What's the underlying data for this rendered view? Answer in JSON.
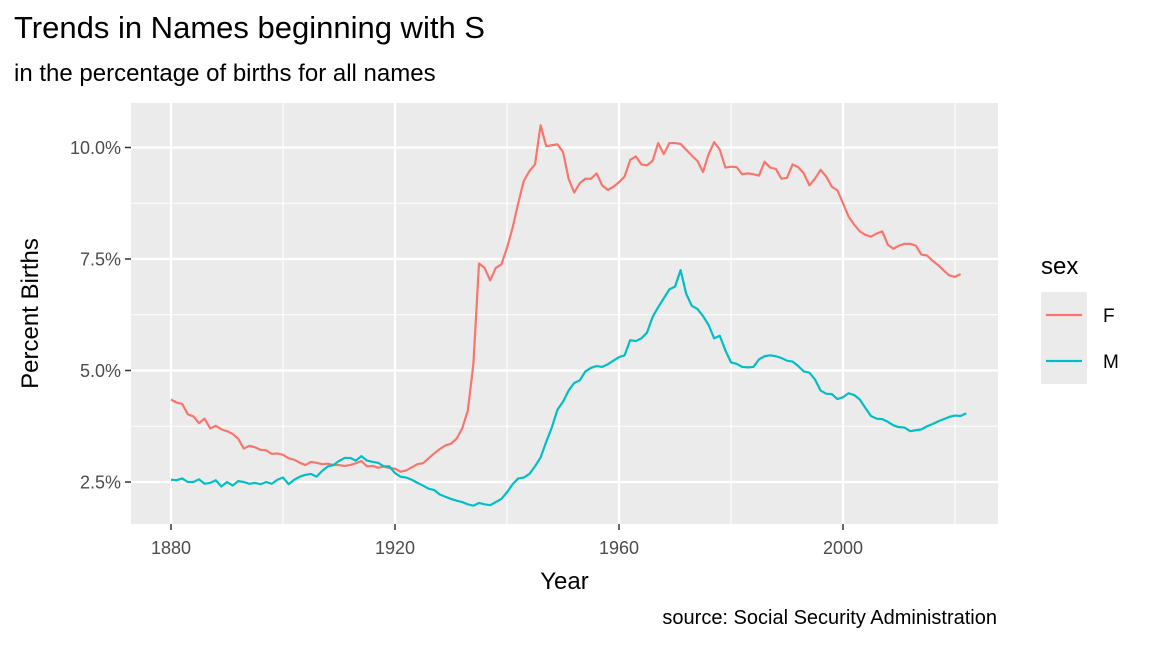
{
  "chart_data": {
    "type": "line",
    "title": "Trends in Names beginning with S",
    "subtitle": "in the percentage of births for all names",
    "caption": "source: Social Security Administration",
    "xlabel": "Year",
    "ylabel": "Percent Births",
    "xlim": [
      1880,
      2021
    ],
    "ylim": [
      1.9,
      10.7
    ],
    "x_ticks": [
      1880,
      1920,
      1960,
      2000
    ],
    "x_tick_labels": [
      "1880",
      "1920",
      "1960",
      "2000"
    ],
    "y_ticks": [
      2.5,
      5.0,
      7.5,
      10.0
    ],
    "y_tick_labels": [
      "2.5%",
      "5.0%",
      "7.5%",
      "10.0%"
    ],
    "grid": true,
    "legend": {
      "title": "sex",
      "placement": "right"
    },
    "series": [
      {
        "name": "F",
        "color": "#F8766D",
        "points": [
          [
            1880,
            4.35
          ],
          [
            1881,
            4.28
          ],
          [
            1882,
            4.25
          ],
          [
            1883,
            4.02
          ],
          [
            1884,
            3.97
          ],
          [
            1885,
            3.82
          ],
          [
            1886,
            3.92
          ],
          [
            1887,
            3.7
          ],
          [
            1888,
            3.76
          ],
          [
            1889,
            3.68
          ],
          [
            1890,
            3.64
          ],
          [
            1891,
            3.58
          ],
          [
            1892,
            3.47
          ],
          [
            1893,
            3.25
          ],
          [
            1894,
            3.31
          ],
          [
            1895,
            3.28
          ],
          [
            1896,
            3.22
          ],
          [
            1897,
            3.21
          ],
          [
            1898,
            3.13
          ],
          [
            1899,
            3.14
          ],
          [
            1900,
            3.11
          ],
          [
            1901,
            3.03
          ],
          [
            1902,
            3.0
          ],
          [
            1903,
            2.93
          ],
          [
            1904,
            2.88
          ],
          [
            1905,
            2.95
          ],
          [
            1906,
            2.93
          ],
          [
            1907,
            2.9
          ],
          [
            1908,
            2.91
          ],
          [
            1909,
            2.88
          ],
          [
            1910,
            2.88
          ],
          [
            1911,
            2.86
          ],
          [
            1912,
            2.88
          ],
          [
            1913,
            2.92
          ],
          [
            1914,
            2.97
          ],
          [
            1915,
            2.85
          ],
          [
            1916,
            2.86
          ],
          [
            1917,
            2.82
          ],
          [
            1918,
            2.85
          ],
          [
            1919,
            2.81
          ],
          [
            1920,
            2.8
          ],
          [
            1921,
            2.73
          ],
          [
            1922,
            2.76
          ],
          [
            1923,
            2.83
          ],
          [
            1924,
            2.9
          ],
          [
            1925,
            2.92
          ],
          [
            1926,
            3.03
          ],
          [
            1927,
            3.14
          ],
          [
            1928,
            3.24
          ],
          [
            1929,
            3.32
          ],
          [
            1930,
            3.36
          ],
          [
            1931,
            3.47
          ],
          [
            1932,
            3.7
          ],
          [
            1933,
            4.1
          ],
          [
            1934,
            5.15
          ],
          [
            1935,
            7.4
          ],
          [
            1936,
            7.3
          ],
          [
            1937,
            7.02
          ],
          [
            1938,
            7.3
          ],
          [
            1939,
            7.38
          ],
          [
            1940,
            7.75
          ],
          [
            1941,
            8.2
          ],
          [
            1942,
            8.75
          ],
          [
            1943,
            9.25
          ],
          [
            1944,
            9.47
          ],
          [
            1945,
            9.62
          ],
          [
            1946,
            10.5
          ],
          [
            1947,
            10.03
          ],
          [
            1948,
            10.05
          ],
          [
            1949,
            10.07
          ],
          [
            1950,
            9.9
          ],
          [
            1951,
            9.3
          ],
          [
            1952,
            8.99
          ],
          [
            1953,
            9.2
          ],
          [
            1954,
            9.3
          ],
          [
            1955,
            9.3
          ],
          [
            1956,
            9.42
          ],
          [
            1957,
            9.15
          ],
          [
            1958,
            9.05
          ],
          [
            1959,
            9.12
          ],
          [
            1960,
            9.22
          ],
          [
            1961,
            9.35
          ],
          [
            1962,
            9.72
          ],
          [
            1963,
            9.8
          ],
          [
            1964,
            9.62
          ],
          [
            1965,
            9.6
          ],
          [
            1966,
            9.7
          ],
          [
            1967,
            10.1
          ],
          [
            1968,
            9.85
          ],
          [
            1969,
            10.1
          ],
          [
            1970,
            10.1
          ],
          [
            1971,
            10.08
          ],
          [
            1972,
            9.95
          ],
          [
            1973,
            9.82
          ],
          [
            1974,
            9.7
          ],
          [
            1975,
            9.45
          ],
          [
            1976,
            9.85
          ],
          [
            1977,
            10.12
          ],
          [
            1978,
            9.95
          ],
          [
            1979,
            9.55
          ],
          [
            1980,
            9.57
          ],
          [
            1981,
            9.56
          ],
          [
            1982,
            9.4
          ],
          [
            1983,
            9.42
          ],
          [
            1984,
            9.4
          ],
          [
            1985,
            9.37
          ],
          [
            1986,
            9.68
          ],
          [
            1987,
            9.55
          ],
          [
            1988,
            9.52
          ],
          [
            1989,
            9.3
          ],
          [
            1990,
            9.32
          ],
          [
            1991,
            9.62
          ],
          [
            1992,
            9.56
          ],
          [
            1993,
            9.42
          ],
          [
            1994,
            9.15
          ],
          [
            1995,
            9.3
          ],
          [
            1996,
            9.5
          ],
          [
            1997,
            9.35
          ],
          [
            1998,
            9.12
          ],
          [
            1999,
            9.04
          ],
          [
            2000,
            8.75
          ],
          [
            2001,
            8.45
          ],
          [
            2002,
            8.27
          ],
          [
            2003,
            8.12
          ],
          [
            2004,
            8.04
          ],
          [
            2005,
            8.0
          ],
          [
            2006,
            8.07
          ],
          [
            2007,
            8.12
          ],
          [
            2008,
            7.82
          ],
          [
            2009,
            7.73
          ],
          [
            2010,
            7.8
          ],
          [
            2011,
            7.84
          ],
          [
            2012,
            7.84
          ],
          [
            2013,
            7.8
          ],
          [
            2014,
            7.6
          ],
          [
            2015,
            7.58
          ],
          [
            2016,
            7.46
          ],
          [
            2017,
            7.36
          ],
          [
            2018,
            7.24
          ],
          [
            2019,
            7.13
          ],
          [
            2020,
            7.1
          ],
          [
            2021,
            7.16
          ]
        ]
      },
      {
        "name": "M",
        "color": "#00BFC4",
        "points": [
          [
            1880,
            2.55
          ],
          [
            1881,
            2.54
          ],
          [
            1882,
            2.58
          ],
          [
            1883,
            2.5
          ],
          [
            1884,
            2.5
          ],
          [
            1885,
            2.56
          ],
          [
            1886,
            2.46
          ],
          [
            1887,
            2.48
          ],
          [
            1888,
            2.54
          ],
          [
            1889,
            2.4
          ],
          [
            1890,
            2.5
          ],
          [
            1891,
            2.42
          ],
          [
            1892,
            2.52
          ],
          [
            1893,
            2.5
          ],
          [
            1894,
            2.46
          ],
          [
            1895,
            2.48
          ],
          [
            1896,
            2.45
          ],
          [
            1897,
            2.5
          ],
          [
            1898,
            2.46
          ],
          [
            1899,
            2.55
          ],
          [
            1900,
            2.6
          ],
          [
            1901,
            2.45
          ],
          [
            1902,
            2.55
          ],
          [
            1903,
            2.62
          ],
          [
            1904,
            2.66
          ],
          [
            1905,
            2.68
          ],
          [
            1906,
            2.62
          ],
          [
            1907,
            2.75
          ],
          [
            1908,
            2.85
          ],
          [
            1909,
            2.88
          ],
          [
            1910,
            2.97
          ],
          [
            1911,
            3.04
          ],
          [
            1912,
            3.04
          ],
          [
            1913,
            2.98
          ],
          [
            1914,
            3.08
          ],
          [
            1915,
            2.98
          ],
          [
            1916,
            2.95
          ],
          [
            1917,
            2.93
          ],
          [
            1918,
            2.85
          ],
          [
            1919,
            2.85
          ],
          [
            1920,
            2.7
          ],
          [
            1921,
            2.62
          ],
          [
            1922,
            2.6
          ],
          [
            1923,
            2.55
          ],
          [
            1924,
            2.48
          ],
          [
            1925,
            2.42
          ],
          [
            1926,
            2.35
          ],
          [
            1927,
            2.32
          ],
          [
            1928,
            2.22
          ],
          [
            1929,
            2.17
          ],
          [
            1930,
            2.12
          ],
          [
            1931,
            2.08
          ],
          [
            1932,
            2.05
          ],
          [
            1933,
            2.0
          ],
          [
            1934,
            1.97
          ],
          [
            1935,
            2.03
          ],
          [
            1936,
            2.0
          ],
          [
            1937,
            1.98
          ],
          [
            1938,
            2.05
          ],
          [
            1939,
            2.12
          ],
          [
            1940,
            2.27
          ],
          [
            1941,
            2.45
          ],
          [
            1942,
            2.58
          ],
          [
            1943,
            2.6
          ],
          [
            1944,
            2.68
          ],
          [
            1945,
            2.85
          ],
          [
            1946,
            3.05
          ],
          [
            1947,
            3.4
          ],
          [
            1948,
            3.72
          ],
          [
            1949,
            4.12
          ],
          [
            1950,
            4.3
          ],
          [
            1951,
            4.55
          ],
          [
            1952,
            4.72
          ],
          [
            1953,
            4.78
          ],
          [
            1954,
            4.98
          ],
          [
            1955,
            5.06
          ],
          [
            1956,
            5.1
          ],
          [
            1957,
            5.08
          ],
          [
            1958,
            5.14
          ],
          [
            1959,
            5.22
          ],
          [
            1960,
            5.3
          ],
          [
            1961,
            5.34
          ],
          [
            1962,
            5.68
          ],
          [
            1963,
            5.66
          ],
          [
            1964,
            5.72
          ],
          [
            1965,
            5.85
          ],
          [
            1966,
            6.2
          ],
          [
            1967,
            6.42
          ],
          [
            1968,
            6.62
          ],
          [
            1969,
            6.82
          ],
          [
            1970,
            6.88
          ],
          [
            1971,
            7.25
          ],
          [
            1972,
            6.72
          ],
          [
            1973,
            6.45
          ],
          [
            1974,
            6.38
          ],
          [
            1975,
            6.22
          ],
          [
            1976,
            6.02
          ],
          [
            1977,
            5.72
          ],
          [
            1978,
            5.78
          ],
          [
            1979,
            5.45
          ],
          [
            1980,
            5.18
          ],
          [
            1981,
            5.15
          ],
          [
            1982,
            5.08
          ],
          [
            1983,
            5.07
          ],
          [
            1984,
            5.08
          ],
          [
            1985,
            5.25
          ],
          [
            1986,
            5.32
          ],
          [
            1987,
            5.34
          ],
          [
            1988,
            5.32
          ],
          [
            1989,
            5.28
          ],
          [
            1990,
            5.22
          ],
          [
            1991,
            5.2
          ],
          [
            1992,
            5.1
          ],
          [
            1993,
            4.98
          ],
          [
            1994,
            4.95
          ],
          [
            1995,
            4.8
          ],
          [
            1996,
            4.55
          ],
          [
            1997,
            4.48
          ],
          [
            1998,
            4.47
          ],
          [
            1999,
            4.36
          ],
          [
            2000,
            4.4
          ],
          [
            2001,
            4.49
          ],
          [
            2002,
            4.45
          ],
          [
            2003,
            4.35
          ],
          [
            2004,
            4.16
          ],
          [
            2005,
            3.98
          ],
          [
            2006,
            3.92
          ],
          [
            2007,
            3.91
          ],
          [
            2008,
            3.85
          ],
          [
            2009,
            3.77
          ],
          [
            2010,
            3.73
          ],
          [
            2011,
            3.72
          ],
          [
            2012,
            3.64
          ],
          [
            2013,
            3.66
          ],
          [
            2014,
            3.68
          ],
          [
            2015,
            3.75
          ],
          [
            2016,
            3.8
          ],
          [
            2017,
            3.86
          ],
          [
            2018,
            3.91
          ],
          [
            2019,
            3.96
          ],
          [
            2020,
            3.99
          ],
          [
            2021,
            3.98
          ],
          [
            2022,
            4.04
          ]
        ]
      }
    ]
  }
}
